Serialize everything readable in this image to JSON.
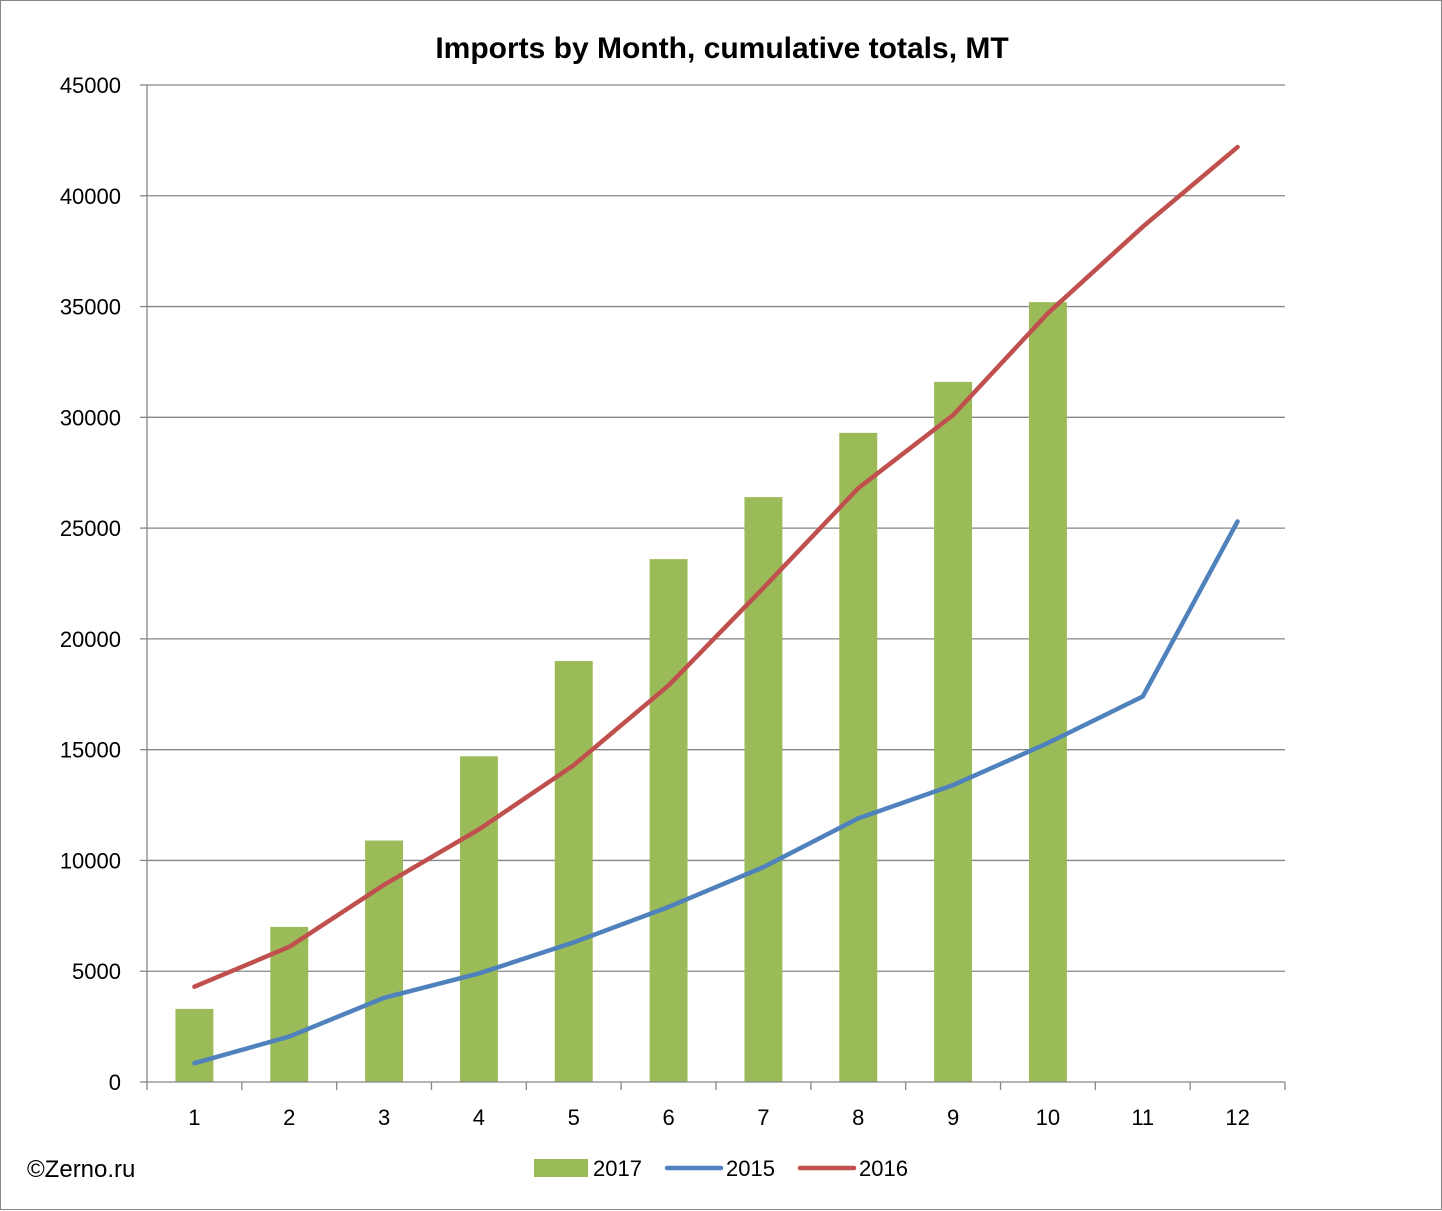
{
  "chart_data": {
    "type": "bar",
    "title": "Imports by Month, cumulative totals, MT",
    "xlabel": "",
    "ylabel": "",
    "categories": [
      "1",
      "2",
      "3",
      "4",
      "5",
      "6",
      "7",
      "8",
      "9",
      "10",
      "11",
      "12"
    ],
    "ylim": [
      0,
      45000
    ],
    "y_ticks": [
      "0",
      "5000",
      "10000",
      "15000",
      "20000",
      "25000",
      "30000",
      "35000",
      "40000",
      "45000"
    ],
    "grid": true,
    "legend_position": "bottom",
    "series": [
      {
        "name": "2017",
        "kind": "bar",
        "color": "#9BBB59",
        "values": [
          3300,
          7000,
          10900,
          14700,
          19000,
          23600,
          26400,
          29300,
          31600,
          35200,
          null,
          null
        ]
      },
      {
        "name": "2015",
        "kind": "line",
        "color": "#4F81BD",
        "values": [
          850,
          2050,
          3800,
          4900,
          6300,
          7900,
          9700,
          11900,
          13400,
          15300,
          17400,
          25300
        ]
      },
      {
        "name": "2016",
        "kind": "line",
        "color": "#C0504D",
        "values": [
          4300,
          6100,
          8900,
          11400,
          14300,
          17900,
          22300,
          26800,
          30100,
          34700,
          38600,
          42200
        ]
      }
    ]
  },
  "credit": "©Zerno.ru"
}
